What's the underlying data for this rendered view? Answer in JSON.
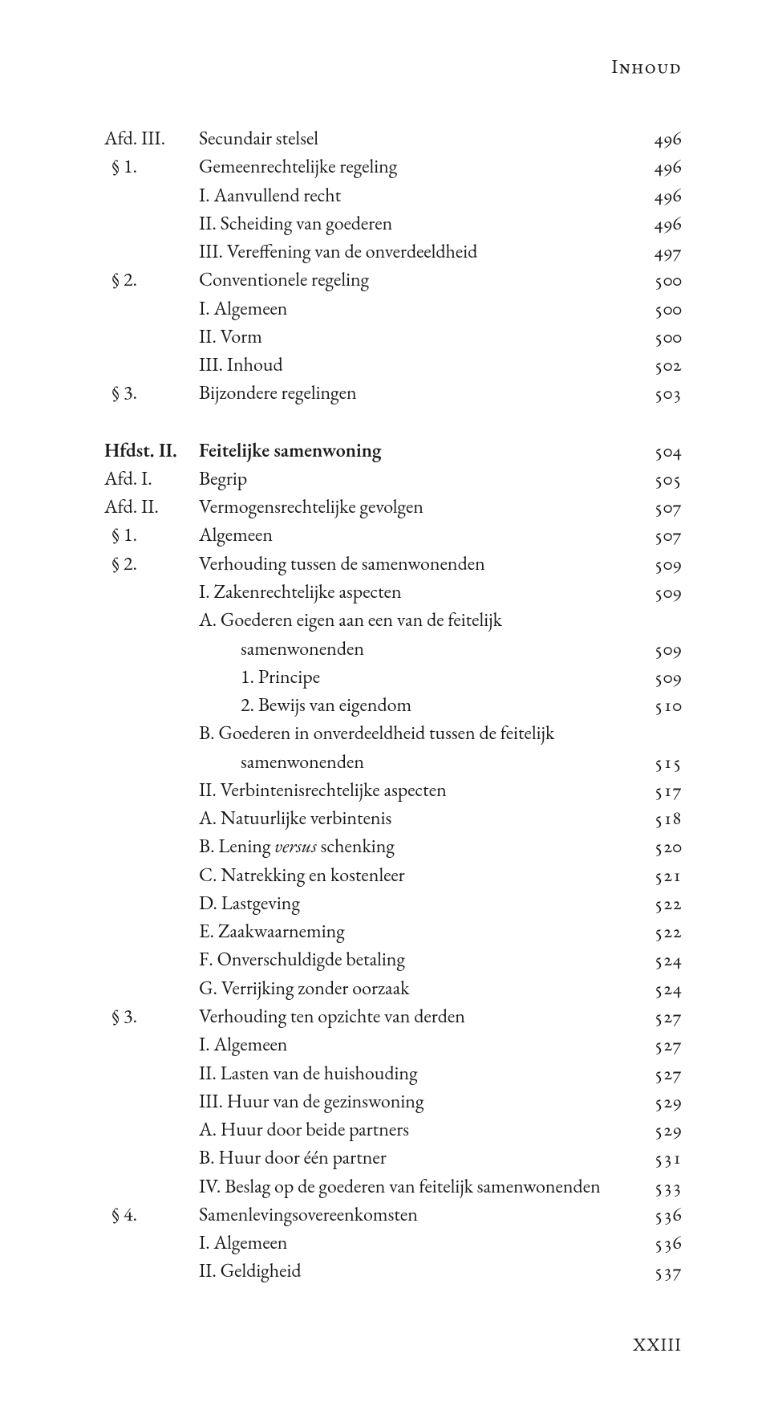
{
  "header": "Inhoud",
  "footer": "XXIII",
  "rows": [
    {
      "label": "Afd. III.",
      "title": "Secundair stelsel",
      "page": "496",
      "labelClass": "",
      "titleClass": ""
    },
    {
      "label": "  § 1.",
      "title": "Gemeenrechtelijke regeling",
      "page": "496"
    },
    {
      "label": "",
      "title": "I.   Aanvullend recht",
      "page": "496"
    },
    {
      "label": "",
      "title": "II.  Scheiding van goederen",
      "page": "496"
    },
    {
      "label": "",
      "title": "III. Vereffening van de onverdeeldheid",
      "page": "497"
    },
    {
      "label": "  § 2.",
      "title": "Conventionele regeling",
      "page": "500"
    },
    {
      "label": "",
      "title": "I.   Algemeen",
      "page": "500"
    },
    {
      "label": "",
      "title": "II.  Vorm",
      "page": "500"
    },
    {
      "label": "",
      "title": "III. Inhoud",
      "page": "502"
    },
    {
      "label": "  § 3.",
      "title": "Bijzondere regelingen",
      "page": "503"
    },
    {
      "gap": true
    },
    {
      "label": "Hfdst. II.",
      "title": "Feitelijke samenwoning",
      "page": "504",
      "labelClass": "bold",
      "titleClass": "bold"
    },
    {
      "label": "Afd. I.",
      "title": "Begrip",
      "page": "505"
    },
    {
      "label": "Afd. II.",
      "title": "Vermogensrechtelijke gevolgen",
      "page": "507"
    },
    {
      "label": "  § 1.",
      "title": "Algemeen",
      "page": "507"
    },
    {
      "label": "  § 2.",
      "title": "Verhouding tussen de samenwonenden",
      "page": "509"
    },
    {
      "label": "",
      "title": "I.   Zakenrechtelijke aspecten",
      "page": "509"
    },
    {
      "label": "",
      "title": "A.  Goederen eigen aan een van de feitelijk",
      "page": ""
    },
    {
      "label": "",
      "titlePad": "pad-sub1",
      "title": "samenwonenden",
      "page": "509"
    },
    {
      "label": "",
      "titlePad": "pad-sub1",
      "title": "1.   Principe",
      "page": "509"
    },
    {
      "label": "",
      "titlePad": "pad-sub1",
      "title": "2.   Bewijs van eigendom",
      "page": "510"
    },
    {
      "label": "",
      "title": "B.  Goederen in onverdeeldheid tussen de feitelijk",
      "page": ""
    },
    {
      "label": "",
      "titlePad": "pad-sub1",
      "title": "samenwonenden",
      "page": "515"
    },
    {
      "label": "",
      "title": "II.  Verbintenisrechtelijke aspecten",
      "page": "517"
    },
    {
      "label": "",
      "title": "A.  Natuurlijke verbintenis",
      "page": "518"
    },
    {
      "label": "",
      "title": "B.  Lening <i>versus</i> schenking",
      "page": "520",
      "html": true
    },
    {
      "label": "",
      "title": "C.  Natrekking en kostenleer",
      "page": "521"
    },
    {
      "label": "",
      "title": "D.  Lastgeving",
      "page": "522"
    },
    {
      "label": "",
      "title": "E.  Zaakwaarneming",
      "page": "522"
    },
    {
      "label": "",
      "title": "F.   Onverschuldigde betaling",
      "page": "524"
    },
    {
      "label": "",
      "title": "G.  Verrijking zonder oorzaak",
      "page": "524"
    },
    {
      "label": "  § 3.",
      "title": "Verhouding ten opzichte van derden",
      "page": "527"
    },
    {
      "label": "",
      "title": "I.   Algemeen",
      "page": "527"
    },
    {
      "label": "",
      "title": "II.  Lasten van de huishouding",
      "page": "527"
    },
    {
      "label": "",
      "title": "III. Huur van de gezinswoning",
      "page": "529"
    },
    {
      "label": "",
      "title": "A.  Huur door beide partners",
      "page": "529"
    },
    {
      "label": "",
      "title": "B.  Huur door één partner",
      "page": "531"
    },
    {
      "label": "",
      "title": "IV. Beslag op de goederen van feitelijk samenwonenden",
      "page": "533"
    },
    {
      "label": "  § 4.",
      "title": "Samenlevingsovereenkomsten",
      "page": "536"
    },
    {
      "label": "",
      "title": "I.   Algemeen",
      "page": "536"
    },
    {
      "label": "",
      "title": "II.  Geldigheid",
      "page": "537"
    }
  ]
}
